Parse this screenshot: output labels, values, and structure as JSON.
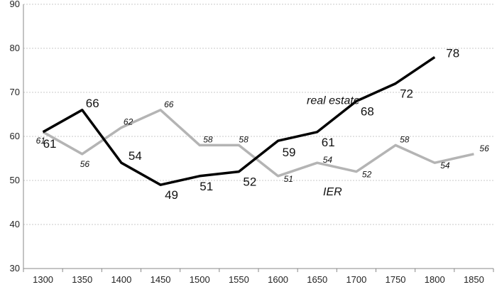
{
  "chart_data": {
    "type": "line",
    "x": [
      1300,
      1350,
      1400,
      1450,
      1500,
      1550,
      1600,
      1650,
      1700,
      1750,
      1800,
      1850
    ],
    "ylim": [
      30,
      90
    ],
    "yticks": [
      30,
      40,
      50,
      60,
      70,
      80,
      90
    ],
    "grid": true,
    "series": [
      {
        "name": "real estate",
        "color": "#000000",
        "values": [
          61,
          66,
          54,
          49,
          51,
          52,
          59,
          61,
          68,
          72,
          78,
          null
        ],
        "labels": [
          "61",
          "66",
          "54",
          "49",
          "51",
          "52",
          "59",
          "61",
          "68",
          "72",
          "78",
          ""
        ]
      },
      {
        "name": "IER",
        "color": "#b4b4b4",
        "values": [
          61,
          56,
          62,
          66,
          58,
          58,
          51,
          54,
          52,
          58,
          54,
          56
        ],
        "labels": [
          "61",
          "56",
          "62",
          "66",
          "58",
          "58",
          "51",
          "54",
          "52",
          "58",
          "54",
          "56"
        ]
      }
    ]
  }
}
